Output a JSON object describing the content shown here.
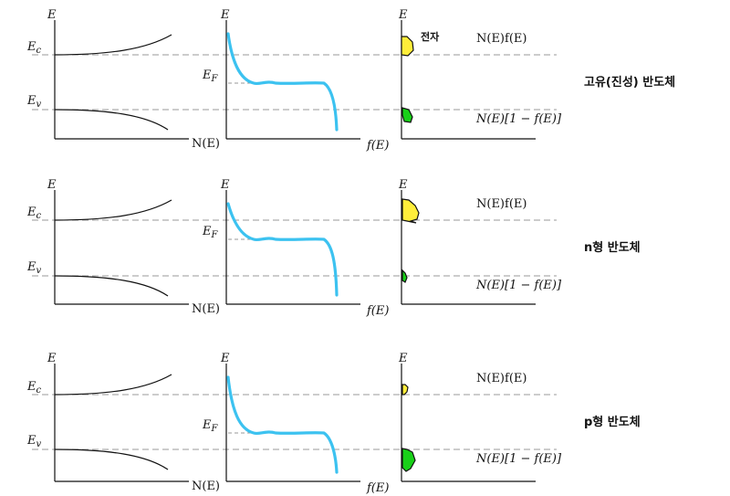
{
  "axis_e_label": "E",
  "dos_axis_label": "N(E)",
  "fermi_axis_label": "f(E)",
  "level_labels": {
    "conduction": "E",
    "conduction_sub": "c",
    "valence": "E",
    "valence_sub": "v",
    "fermi": "E",
    "fermi_sub": "F"
  },
  "electrons_label": "전자",
  "electron_density_formula": "N(E)f(E)",
  "hole_density_formula": "N(E)[1 − f(E)]",
  "rows": [
    {
      "id": "intrinsic",
      "title": "고유(진성) 반도체",
      "show_electron_tag": true
    },
    {
      "id": "n-type",
      "title": "n형 반도체",
      "show_electron_tag": false
    },
    {
      "id": "p-type",
      "title": "p형 반도체",
      "show_electron_tag": false
    }
  ],
  "colors": {
    "fermi_curve": "#3cc2f0",
    "electrons": "#ffee3a",
    "holes": "#18d018",
    "dashed": "#999999"
  }
}
